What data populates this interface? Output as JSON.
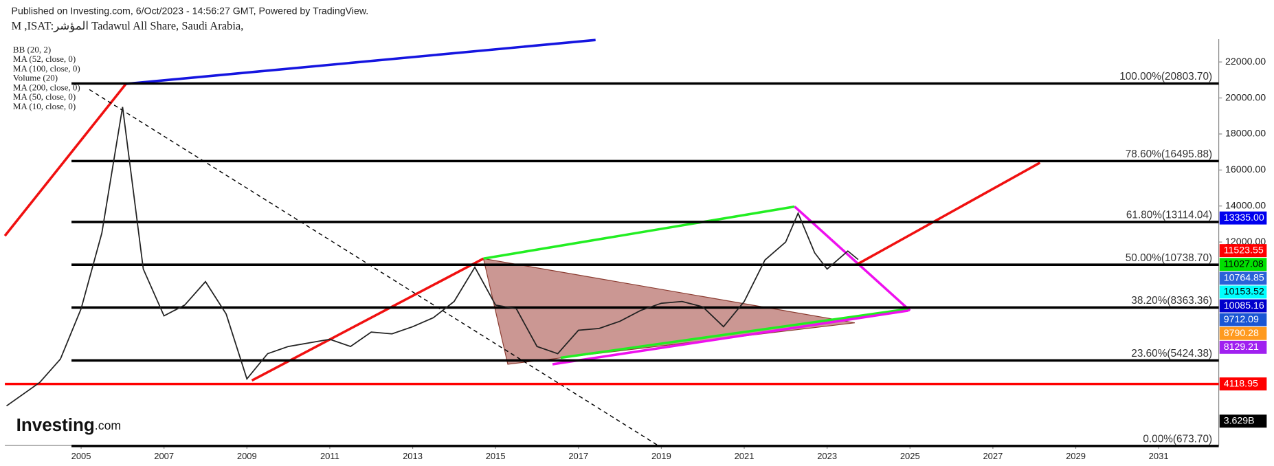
{
  "header": {
    "published": "Published on Investing.com, 6/Oct/2023 - 14:56:27 GMT, Powered by TradingView.",
    "symbol": "M ,ISAT:المؤشر Tadawul All Share, Saudi Arabia,",
    "indicators": [
      "BB (20, 2)",
      "MA (52, close, 0)",
      "MA (100, close, 0)",
      "Volume (20)",
      "MA (200, close, 0)",
      "MA (50, close, 0)",
      "MA (10, close, 0)"
    ],
    "logo": "Investing",
    "logo_suffix": ".com"
  },
  "chart_data": {
    "type": "line",
    "color": "#222222",
    "x": [
      2003.2,
      2004.0,
      2004.5,
      2005.0,
      2005.5,
      2006.0,
      2006.5,
      2007.0,
      2007.5,
      2008.0,
      2008.5,
      2009.0,
      2009.5,
      2010.0,
      2010.5,
      2011.0,
      2011.5,
      2012.0,
      2012.5,
      2013.0,
      2013.5,
      2014.0,
      2014.5,
      2015.0,
      2015.5,
      2016.0,
      2016.5,
      2017.0,
      2017.5,
      2018.0,
      2018.5,
      2019.0,
      2019.5,
      2020.0,
      2020.5,
      2021.0,
      2021.5,
      2022.0,
      2022.3,
      2022.7,
      2023.0,
      2023.5,
      2023.75
    ],
    "values": [
      2900,
      4200,
      5500,
      8300,
      12500,
      19500,
      10500,
      7900,
      8500,
      9800,
      8000,
      4400,
      5800,
      6200,
      6400,
      6600,
      6200,
      7000,
      6900,
      7300,
      7800,
      8700,
      10600,
      8500,
      8300,
      6200,
      5800,
      7100,
      7200,
      7600,
      8200,
      8600,
      8700,
      8400,
      7300,
      8700,
      11000,
      12000,
      13600,
      11400,
      10500,
      11500,
      11027
    ],
    "xlim": [
      2003.16,
      2032.45
    ],
    "ylim": [
      700,
      23400
    ],
    "xticks": [
      2005,
      2007,
      2009,
      2011,
      2013,
      2015,
      2017,
      2019,
      2021,
      2023,
      2025,
      2027,
      2029,
      2031
    ],
    "yticks": [
      {
        "value": 12000,
        "label": "12000.00"
      },
      {
        "value": 14000,
        "label": "14000.00"
      },
      {
        "value": 16000,
        "label": "16000.00"
      },
      {
        "value": 18000,
        "label": "18000.00"
      },
      {
        "value": 20000,
        "label": "20000.00"
      },
      {
        "value": 22000,
        "label": "22000.00"
      }
    ],
    "fib_levels": [
      {
        "value": 20803.7,
        "label": "100.00%(20803.70)"
      },
      {
        "value": 16495.88,
        "label": "78.60%(16495.88)"
      },
      {
        "value": 13114.04,
        "label": "61.80%(13114.04)"
      },
      {
        "value": 10738.7,
        "label": "50.00%(10738.70)"
      },
      {
        "value": 8363.36,
        "label": "38.20%(8363.36)"
      },
      {
        "value": 5424.38,
        "label": "23.60%(5424.38)"
      },
      {
        "value": 673.7,
        "label": "0.00%(673.70)"
      }
    ],
    "support": {
      "value": 4118.95,
      "label": "4118.95",
      "color": "#ff0000"
    },
    "price_labels": [
      {
        "value": 13335,
        "label": "13335.00",
        "color": "#0000ee"
      },
      {
        "value": 11523.55,
        "label": "11523.55",
        "color": "#ff0000"
      },
      {
        "value": 11027.08,
        "label": "11027.08",
        "color": "#00e000"
      },
      {
        "value": 10764.85,
        "label": "10764.85",
        "color": "#2a62d8"
      },
      {
        "value": 10153.52,
        "label": "10153.52",
        "color": "#00ffff"
      },
      {
        "value": 10085.16,
        "label": "10085.16",
        "color": "#0000cc"
      },
      {
        "value": 9712.09,
        "label": "9712.09",
        "color": "#1a56d4"
      },
      {
        "value": 8790.28,
        "label": "8790.28",
        "color": "#ff9a1f"
      },
      {
        "value": 8129.21,
        "label": "8129.21",
        "color": "#a020f0"
      }
    ],
    "volume_label": "3.629B"
  }
}
